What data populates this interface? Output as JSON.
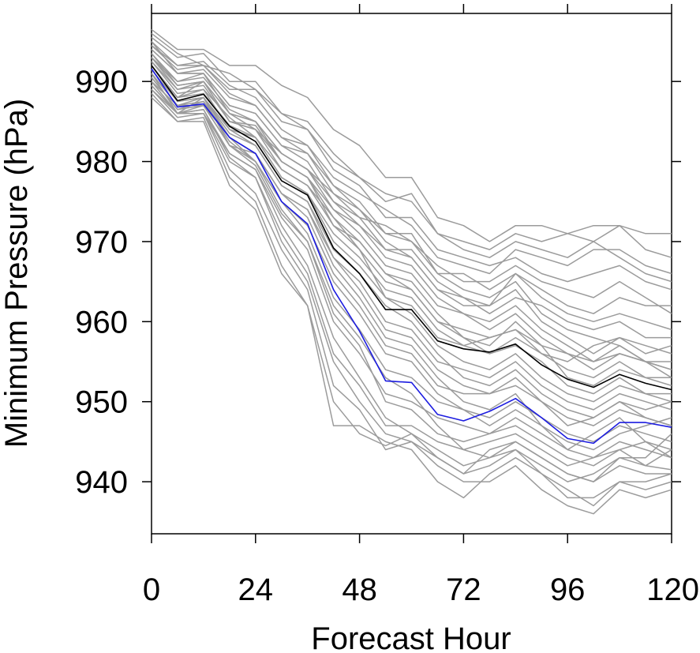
{
  "chart_data": {
    "type": "line",
    "xlabel": "Forecast Hour",
    "ylabel": "Minimum Pressure (hPa)",
    "xlim": [
      0,
      120
    ],
    "ylim": [
      933.5,
      998.5
    ],
    "xticks": [
      0,
      24,
      48,
      72,
      96,
      120
    ],
    "yticks": [
      940,
      950,
      960,
      970,
      980,
      990
    ],
    "grid": false,
    "colors": {
      "ensemble": "#9b9b9b",
      "mean": "#000000",
      "highlight": "#1c1ce0",
      "axis": "#000000"
    },
    "x": [
      0,
      6,
      12,
      18,
      24,
      30,
      36,
      42,
      48,
      54,
      60,
      66,
      72,
      78,
      84,
      90,
      96,
      102,
      108,
      114,
      120
    ],
    "series": [
      {
        "role": "mean",
        "values": [
          992.0,
          987.6,
          988.4,
          984.4,
          982.5,
          977.6,
          975.8,
          969.2,
          966.0,
          961.5,
          961.5,
          957.6,
          956.6,
          956.2,
          957.2,
          954.6,
          952.8,
          951.8,
          953.4,
          952.3,
          951.5
        ]
      },
      {
        "role": "highlight",
        "values": [
          991.6,
          986.8,
          987.2,
          983.0,
          981.0,
          975.0,
          972.2,
          964.0,
          958.8,
          952.6,
          952.4,
          948.4,
          947.6,
          948.8,
          950.4,
          948.0,
          945.4,
          944.8,
          947.4,
          947.4,
          946.8
        ]
      },
      {
        "role": "member",
        "values": [
          996.5,
          994.0,
          994.0,
          992.0,
          992.0,
          989.5,
          988.0,
          984.0,
          982.0,
          978.0,
          978.0,
          973.0,
          972.0,
          970.0,
          972.0,
          972.0,
          971.0,
          972.0,
          972.0,
          971.0,
          971.0
        ]
      },
      {
        "role": "member",
        "values": [
          995.5,
          993.0,
          993.5,
          990.0,
          990.0,
          986.0,
          985.0,
          981.0,
          978.0,
          976.0,
          975.0,
          971.0,
          970.0,
          969.0,
          971.0,
          970.0,
          971.0,
          970.0,
          972.0,
          969.0,
          968.0
        ]
      },
      {
        "role": "member",
        "values": [
          994.5,
          992.0,
          992.0,
          989.0,
          989.0,
          985.0,
          984.0,
          979.0,
          977.0,
          973.0,
          973.0,
          969.0,
          968.0,
          967.0,
          968.0,
          966.0,
          965.0,
          966.0,
          967.0,
          965.0,
          964.0
        ]
      },
      {
        "role": "member",
        "values": [
          994.0,
          991.0,
          991.5,
          988.0,
          987.0,
          983.0,
          982.0,
          977.0,
          975.0,
          971.0,
          971.0,
          966.0,
          966.0,
          964.0,
          966.0,
          964.0,
          962.0,
          961.0,
          963.0,
          962.0,
          962.0
        ]
      },
      {
        "role": "member",
        "values": [
          993.5,
          990.0,
          991.0,
          987.0,
          986.0,
          982.0,
          980.0,
          975.0,
          973.0,
          969.0,
          968.0,
          964.0,
          963.0,
          962.0,
          964.0,
          960.0,
          958.0,
          956.0,
          958.0,
          957.0,
          956.0
        ]
      },
      {
        "role": "member",
        "values": [
          993.0,
          989.5,
          990.0,
          986.0,
          985.0,
          981.0,
          979.0,
          974.0,
          971.0,
          967.0,
          966.0,
          962.0,
          961.0,
          959.0,
          961.0,
          958.0,
          956.0,
          955.0,
          956.0,
          955.0,
          954.0
        ]
      },
      {
        "role": "member",
        "values": [
          992.5,
          989.0,
          989.5,
          985.0,
          984.0,
          980.0,
          978.0,
          972.0,
          969.0,
          965.0,
          964.0,
          960.0,
          959.0,
          958.0,
          959.0,
          956.0,
          954.0,
          953.0,
          955.0,
          953.0,
          953.0
        ]
      },
      {
        "role": "member",
        "values": [
          992.0,
          988.0,
          989.0,
          984.0,
          983.0,
          978.0,
          976.0,
          970.0,
          967.0,
          963.0,
          962.0,
          958.0,
          957.0,
          956.0,
          957.0,
          955.0,
          952.0,
          951.0,
          953.0,
          951.0,
          950.0
        ]
      },
      {
        "role": "member",
        "values": [
          991.5,
          987.5,
          988.0,
          983.5,
          982.0,
          977.0,
          975.0,
          968.0,
          965.0,
          960.0,
          959.0,
          955.0,
          954.0,
          953.0,
          955.0,
          952.0,
          950.0,
          949.0,
          951.0,
          950.0,
          949.0
        ]
      },
      {
        "role": "member",
        "values": [
          991.0,
          987.0,
          987.5,
          983.0,
          981.0,
          976.0,
          973.0,
          966.0,
          962.0,
          957.0,
          956.0,
          952.0,
          951.0,
          951.0,
          952.0,
          950.0,
          948.0,
          947.0,
          949.0,
          948.0,
          947.0
        ]
      },
      {
        "role": "member",
        "values": [
          990.5,
          986.5,
          987.0,
          982.0,
          980.0,
          975.0,
          971.0,
          963.0,
          959.0,
          954.0,
          953.0,
          950.0,
          949.0,
          948.0,
          950.0,
          948.0,
          946.0,
          945.0,
          947.0,
          946.0,
          945.0
        ]
      },
      {
        "role": "member",
        "values": [
          990.0,
          986.0,
          986.5,
          981.0,
          979.0,
          973.0,
          969.0,
          960.0,
          956.0,
          951.0,
          950.0,
          948.0,
          947.0,
          946.0,
          948.0,
          946.0,
          944.0,
          943.0,
          945.0,
          944.0,
          943.0
        ]
      },
      {
        "role": "member",
        "values": [
          989.5,
          986.0,
          986.0,
          980.0,
          978.0,
          971.0,
          966.0,
          956.0,
          952.0,
          947.0,
          947.0,
          945.0,
          944.0,
          943.0,
          945.0,
          943.0,
          941.0,
          940.0,
          942.0,
          941.0,
          941.0
        ]
      },
      {
        "role": "member",
        "values": [
          989.0,
          985.5,
          986.0,
          979.0,
          976.0,
          969.0,
          964.0,
          952.0,
          949.0,
          944.0,
          945.0,
          942.0,
          940.0,
          940.0,
          942.0,
          939.0,
          937.0,
          936.0,
          939.0,
          938.0,
          939.0
        ]
      },
      {
        "role": "member",
        "values": [
          988.5,
          985.0,
          985.5,
          978.0,
          975.0,
          967.0,
          962.0,
          947.0,
          947.0,
          945.0,
          944.0,
          940.0,
          938.0,
          941.0,
          943.0,
          941.0,
          938.0,
          938.0,
          940.0,
          940.0,
          941.0
        ]
      },
      {
        "role": "member",
        "values": [
          988.0,
          985.0,
          985.0,
          977.0,
          974.0,
          966.0,
          962.0,
          950.0,
          946.0,
          944.5,
          946.0,
          943.0,
          941.0,
          944.0,
          945.0,
          943.0,
          941.0,
          940.0,
          943.0,
          942.0,
          944.0
        ]
      },
      {
        "role": "member",
        "values": [
          991.0,
          986.0,
          988.0,
          982.0,
          981.0,
          976.0,
          974.0,
          967.0,
          963.0,
          958.0,
          957.0,
          953.0,
          950.0,
          949.0,
          951.0,
          947.0,
          944.0,
          946.0,
          948.0,
          945.0,
          944.0
        ]
      },
      {
        "role": "member",
        "values": [
          992.0,
          988.0,
          990.0,
          985.0,
          984.0,
          979.0,
          977.0,
          972.0,
          970.0,
          966.0,
          965.0,
          961.0,
          958.0,
          956.0,
          958.0,
          956.0,
          955.0,
          957.0,
          958.0,
          956.0,
          957.0
        ]
      },
      {
        "role": "member",
        "values": [
          993.0,
          990.0,
          990.5,
          986.5,
          985.0,
          980.0,
          978.0,
          974.0,
          972.0,
          969.0,
          969.0,
          965.0,
          963.0,
          961.0,
          963.0,
          962.0,
          960.0,
          959.0,
          960.0,
          958.0,
          958.0
        ]
      },
      {
        "role": "member",
        "values": [
          994.0,
          991.0,
          991.0,
          987.0,
          986.0,
          982.0,
          981.0,
          976.0,
          974.0,
          971.0,
          970.0,
          967.0,
          965.0,
          965.0,
          967.0,
          965.0,
          964.0,
          963.0,
          965.0,
          963.0,
          961.0
        ]
      },
      {
        "role": "member",
        "values": [
          995.0,
          992.0,
          992.5,
          989.5,
          988.0,
          984.0,
          982.0,
          978.0,
          976.0,
          974.0,
          972.0,
          968.0,
          967.0,
          966.0,
          969.0,
          968.0,
          967.0,
          969.0,
          969.0,
          967.0,
          966.0
        ]
      },
      {
        "role": "member",
        "values": [
          996.0,
          993.5,
          992.0,
          991.0,
          989.0,
          986.0,
          984.0,
          980.0,
          978.0,
          975.0,
          976.0,
          971.0,
          969.0,
          968.0,
          970.0,
          969.0,
          968.0,
          970.0,
          968.0,
          966.0,
          965.0
        ]
      },
      {
        "role": "member",
        "values": [
          990.0,
          987.0,
          987.0,
          983.0,
          980.0,
          974.0,
          970.0,
          962.0,
          958.0,
          953.0,
          951.0,
          947.0,
          944.0,
          945.0,
          946.0,
          944.0,
          942.0,
          943.0,
          944.0,
          942.0,
          941.5
        ]
      },
      {
        "role": "member",
        "values": [
          991.0,
          987.0,
          988.0,
          984.0,
          982.0,
          977.0,
          975.0,
          969.0,
          966.0,
          962.0,
          960.0,
          956.0,
          953.0,
          952.0,
          954.0,
          951.0,
          949.0,
          948.0,
          950.0,
          948.0,
          947.0
        ]
      },
      {
        "role": "member",
        "values": [
          992.5,
          988.5,
          989.0,
          985.5,
          983.0,
          979.0,
          977.0,
          973.0,
          970.0,
          966.0,
          964.0,
          960.0,
          958.0,
          957.0,
          960.0,
          957.0,
          956.0,
          954.0,
          956.0,
          955.0,
          953.0
        ]
      },
      {
        "role": "member",
        "values": [
          989.0,
          986.0,
          986.0,
          981.0,
          979.0,
          972.0,
          967.0,
          958.0,
          953.0,
          948.0,
          946.0,
          944.0,
          942.0,
          943.0,
          944.0,
          942.0,
          940.0,
          941.0,
          943.0,
          943.0,
          946.0
        ]
      },
      {
        "role": "member",
        "values": [
          993.0,
          989.0,
          990.0,
          986.0,
          984.0,
          981.0,
          979.0,
          975.0,
          972.0,
          968.0,
          967.0,
          963.0,
          961.0,
          960.0,
          962.0,
          959.0,
          957.0,
          955.0,
          957.0,
          955.0,
          955.0
        ]
      },
      {
        "role": "member",
        "values": [
          990.5,
          986.5,
          987.5,
          982.5,
          980.0,
          975.0,
          972.0,
          965.0,
          961.0,
          956.0,
          955.0,
          951.0,
          949.0,
          947.0,
          949.0,
          947.0,
          945.0,
          944.0,
          946.0,
          947.0,
          948.0
        ]
      },
      {
        "role": "member",
        "values": [
          994.5,
          991.5,
          992.0,
          988.5,
          987.0,
          983.0,
          981.0,
          977.0,
          974.0,
          970.0,
          968.0,
          964.0,
          962.0,
          962.0,
          966.0,
          963.0,
          961.0,
          960.0,
          961.0,
          960.0,
          959.0
        ]
      },
      {
        "role": "member",
        "values": [
          989.5,
          986.0,
          986.5,
          980.5,
          978.0,
          970.0,
          965.0,
          955.0,
          950.0,
          946.0,
          945.0,
          943.0,
          941.0,
          942.0,
          944.0,
          941.0,
          939.0,
          937.0,
          940.0,
          939.0,
          940.0
        ]
      },
      {
        "role": "member",
        "values": [
          992.0,
          988.0,
          988.5,
          984.5,
          983.0,
          978.0,
          976.0,
          971.0,
          968.0,
          964.0,
          963.0,
          959.0,
          957.0,
          958.0,
          959.0,
          957.0,
          953.0,
          952.0,
          954.0,
          953.0,
          952.0
        ]
      },
      {
        "role": "member",
        "values": [
          995.0,
          991.0,
          991.0,
          986.0,
          985.0,
          981.0,
          979.0,
          976.0,
          973.0,
          972.0,
          970.0,
          966.0,
          964.0,
          963.0,
          965.0,
          961.0,
          959.0,
          958.0,
          957.0,
          955.0,
          954.0
        ]
      },
      {
        "role": "member",
        "values": [
          991.5,
          987.5,
          988.0,
          983.0,
          981.0,
          976.0,
          974.0,
          968.0,
          964.0,
          959.0,
          958.0,
          954.0,
          952.0,
          951.0,
          953.0,
          950.0,
          947.0,
          948.0,
          950.0,
          949.0,
          950.0
        ]
      },
      {
        "role": "member",
        "values": [
          993.5,
          989.5,
          990.0,
          985.0,
          984.5,
          980.0,
          978.0,
          973.0,
          969.0,
          963.0,
          961.0,
          957.0,
          955.0,
          954.0,
          956.0,
          953.0,
          951.0,
          950.0,
          952.0,
          951.0,
          951.0
        ]
      },
      {
        "role": "member",
        "values": [
          990.0,
          986.0,
          987.0,
          982.0,
          979.5,
          973.5,
          970.0,
          961.0,
          957.0,
          950.0,
          949.0,
          946.0,
          945.0,
          946.0,
          947.0,
          945.0,
          943.0,
          942.0,
          944.0,
          945.0,
          943.0
        ]
      }
    ]
  }
}
